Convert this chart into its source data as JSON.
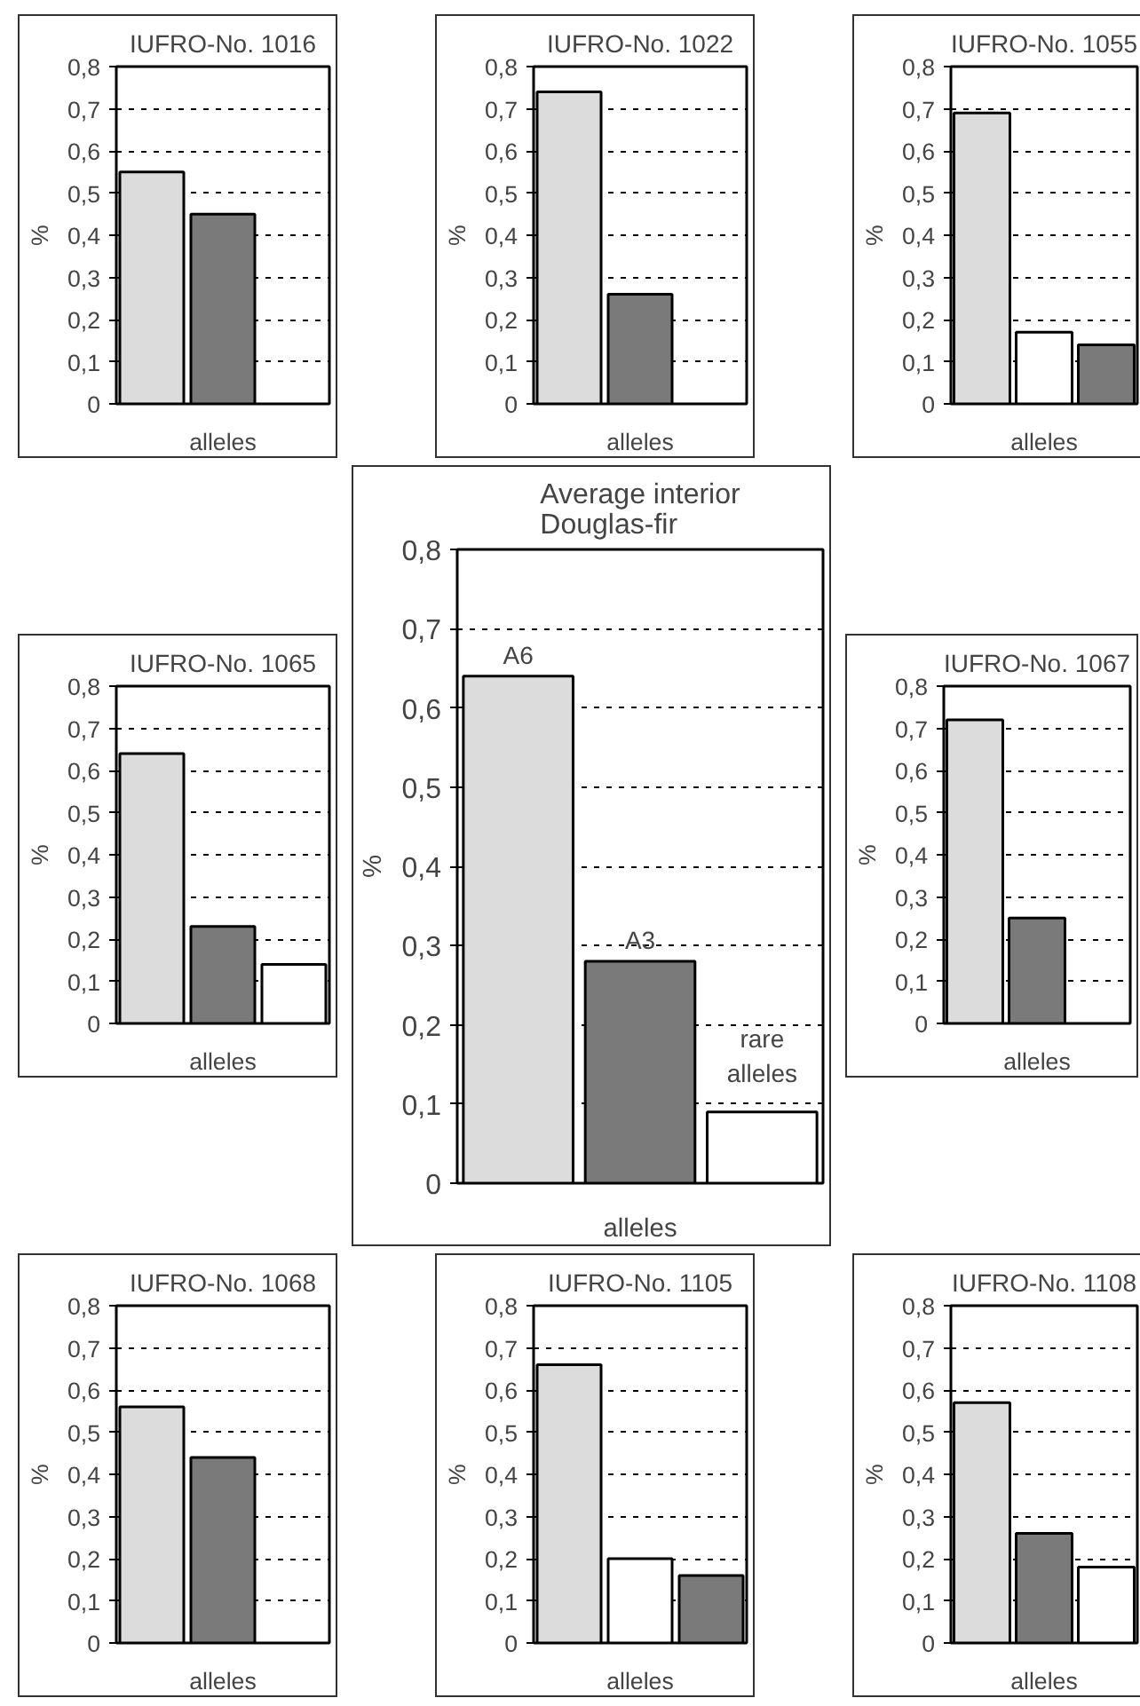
{
  "chart_data": [
    {
      "type": "bar",
      "title": "IUFRO-No. 1016",
      "xlabel": "alleles",
      "ylabel": "%",
      "categories": [
        null,
        null
      ],
      "values": [
        0.55,
        0.45
      ],
      "colors": [
        "#dcdcdc",
        "#7a7a7a"
      ],
      "ylim": [
        0,
        0.8
      ],
      "yticks": [
        0,
        {
          "value": 0.1,
          "label": "0,1"
        },
        {
          "value": 0.2,
          "label": "0,2"
        },
        {
          "value": 0.3,
          "label": "0,3"
        },
        {
          "value": 0.4,
          "label": "0,4"
        },
        {
          "value": 0.5,
          "label": "0,5"
        },
        {
          "value": 0.6,
          "label": "0,6"
        },
        {
          "value": 0.7,
          "label": "0,7"
        },
        {
          "value": 0.8,
          "label": "0,8"
        }
      ],
      "grid": "y",
      "tick_labels": "y"
    },
    {
      "type": "bar",
      "title": "IUFRO-No. 1022",
      "xlabel": "alleles",
      "ylabel": "%",
      "categories": [
        null,
        null
      ],
      "values": [
        0.74,
        0.26
      ],
      "colors": [
        "#dcdcdc",
        "#7a7a7a"
      ],
      "ylim": [
        0,
        0.8
      ],
      "yticks": [
        0,
        {
          "value": 0.1,
          "label": "0,1"
        },
        {
          "value": 0.2,
          "label": "0,2"
        },
        {
          "value": 0.3,
          "label": "0,3"
        },
        {
          "value": 0.4,
          "label": "0,4"
        },
        {
          "value": 0.5,
          "label": "0,5"
        },
        {
          "value": 0.6,
          "label": "0,6"
        },
        {
          "value": 0.7,
          "label": "0,7"
        },
        {
          "value": 0.8,
          "label": "0,8"
        }
      ],
      "grid": "y",
      "tick_labels": "y"
    },
    {
      "type": "bar",
      "title": "IUFRO-No. 1055",
      "xlabel": "alleles",
      "ylabel": "%",
      "categories": [
        null,
        null,
        null
      ],
      "values": [
        0.69,
        0.17,
        0.14
      ],
      "colors": [
        "#dcdcdc",
        "#ffffff",
        "#7a7a7a"
      ],
      "ylim": [
        0,
        0.8
      ],
      "yticks": [
        0,
        {
          "value": 0.1,
          "label": "0,1"
        },
        {
          "value": 0.2,
          "label": "0,2"
        },
        {
          "value": 0.3,
          "label": "0,3"
        },
        {
          "value": 0.4,
          "label": "0,4"
        },
        {
          "value": 0.5,
          "label": "0,5"
        },
        {
          "value": 0.6,
          "label": "0,6"
        },
        {
          "value": 0.7,
          "label": "0,7"
        },
        {
          "value": 0.8,
          "label": "0,8"
        }
      ],
      "grid": "y",
      "tick_labels": "y"
    },
    {
      "type": "bar",
      "title": "IUFRO-No. 1065",
      "xlabel": "alleles",
      "ylabel": "%",
      "categories": [
        null,
        null,
        null
      ],
      "values": [
        0.64,
        0.23,
        0.14
      ],
      "colors": [
        "#dcdcdc",
        "#7a7a7a",
        "#ffffff"
      ],
      "ylim": [
        0,
        0.8
      ],
      "yticks": [
        0,
        {
          "value": 0.1,
          "label": "0,1"
        },
        {
          "value": 0.2,
          "label": "0,2"
        },
        {
          "value": 0.3,
          "label": "0,3"
        },
        {
          "value": 0.4,
          "label": "0,4"
        },
        {
          "value": 0.5,
          "label": "0,5"
        },
        {
          "value": 0.6,
          "label": "0,6"
        },
        {
          "value": 0.7,
          "label": "0,7"
        },
        {
          "value": 0.8,
          "label": "0,8"
        }
      ],
      "grid": "y",
      "tick_labels": "y"
    },
    {
      "type": "bar",
      "title": "Average interior\nDouglas-fir",
      "xlabel": "alleles",
      "ylabel": "%",
      "categories": [
        null,
        null,
        null
      ],
      "values": [
        0.64,
        0.28,
        0.09
      ],
      "colors": [
        "#dcdcdc",
        "#7a7a7a",
        "#ffffff"
      ],
      "annotations": [
        "A6",
        "A3",
        "rare\nalleles"
      ],
      "ylim": [
        0,
        0.8
      ],
      "yticks": [
        0,
        {
          "value": 0.1,
          "label": "0,1"
        },
        {
          "value": 0.2,
          "label": "0,2"
        },
        {
          "value": 0.3,
          "label": "0,3"
        },
        {
          "value": 0.4,
          "label": "0,4"
        },
        {
          "value": 0.5,
          "label": "0,5"
        },
        {
          "value": 0.6,
          "label": "0,6"
        },
        {
          "value": 0.7,
          "label": "0,7"
        },
        {
          "value": 0.8,
          "label": "0,8"
        }
      ],
      "grid": "y",
      "tick_labels": "y"
    },
    {
      "type": "bar",
      "title": "IUFRO-No. 1067",
      "xlabel": "alleles",
      "ylabel": "%",
      "categories": [
        null,
        null
      ],
      "values": [
        0.72,
        0.25
      ],
      "colors": [
        "#dcdcdc",
        "#7a7a7a"
      ],
      "ylim": [
        0,
        0.8
      ],
      "yticks": [
        0,
        {
          "value": 0.1,
          "label": "0,1"
        },
        {
          "value": 0.2,
          "label": "0,2"
        },
        {
          "value": 0.3,
          "label": "0,3"
        },
        {
          "value": 0.4,
          "label": "0,4"
        },
        {
          "value": 0.5,
          "label": "0,5"
        },
        {
          "value": 0.6,
          "label": "0,6"
        },
        {
          "value": 0.7,
          "label": "0,7"
        },
        {
          "value": 0.8,
          "label": "0,8"
        }
      ],
      "grid": "y",
      "tick_labels": "y"
    },
    {
      "type": "bar",
      "title": "IUFRO-No. 1068",
      "xlabel": "alleles",
      "ylabel": "%",
      "categories": [
        null,
        null
      ],
      "values": [
        0.56,
        0.44
      ],
      "colors": [
        "#dcdcdc",
        "#7a7a7a"
      ],
      "ylim": [
        0,
        0.8
      ],
      "yticks": [
        0,
        {
          "value": 0.1,
          "label": "0,1"
        },
        {
          "value": 0.2,
          "label": "0,2"
        },
        {
          "value": 0.3,
          "label": "0,3"
        },
        {
          "value": 0.4,
          "label": "0,4"
        },
        {
          "value": 0.5,
          "label": "0,5"
        },
        {
          "value": 0.6,
          "label": "0,6"
        },
        {
          "value": 0.7,
          "label": "0,7"
        },
        {
          "value": 0.8,
          "label": "0,8"
        }
      ],
      "grid": "y",
      "tick_labels": "y"
    },
    {
      "type": "bar",
      "title": "IUFRO-No. 1105",
      "xlabel": "alleles",
      "ylabel": "%",
      "categories": [
        null,
        null,
        null
      ],
      "values": [
        0.66,
        0.2,
        0.16
      ],
      "colors": [
        "#dcdcdc",
        "#ffffff",
        "#7a7a7a"
      ],
      "ylim": [
        0,
        0.8
      ],
      "yticks": [
        0,
        {
          "value": 0.1,
          "label": "0,1"
        },
        {
          "value": 0.2,
          "label": "0,2"
        },
        {
          "value": 0.3,
          "label": "0,3"
        },
        {
          "value": 0.4,
          "label": "0,4"
        },
        {
          "value": 0.5,
          "label": "0,5"
        },
        {
          "value": 0.6,
          "label": "0,6"
        },
        {
          "value": 0.7,
          "label": "0,7"
        },
        {
          "value": 0.8,
          "label": "0,8"
        }
      ],
      "grid": "y",
      "tick_labels": "y"
    },
    {
      "type": "bar",
      "title": "IUFRO-No. 1108",
      "xlabel": "alleles",
      "ylabel": "%",
      "categories": [
        null,
        null,
        null
      ],
      "values": [
        0.57,
        0.26,
        0.18
      ],
      "colors": [
        "#dcdcdc",
        "#7a7a7a",
        "#ffffff"
      ],
      "ylim": [
        0,
        0.8
      ],
      "yticks": [
        0,
        {
          "value": 0.1,
          "label": "0,1"
        },
        {
          "value": 0.2,
          "label": "0,2"
        },
        {
          "value": 0.3,
          "label": "0,3"
        },
        {
          "value": 0.4,
          "label": "0,4"
        },
        {
          "value": 0.5,
          "label": "0,5"
        },
        {
          "value": 0.6,
          "label": "0,6"
        },
        {
          "value": 0.7,
          "label": "0,7"
        },
        {
          "value": 0.8,
          "label": "0,8"
        }
      ],
      "grid": "y",
      "tick_labels": "y"
    }
  ]
}
